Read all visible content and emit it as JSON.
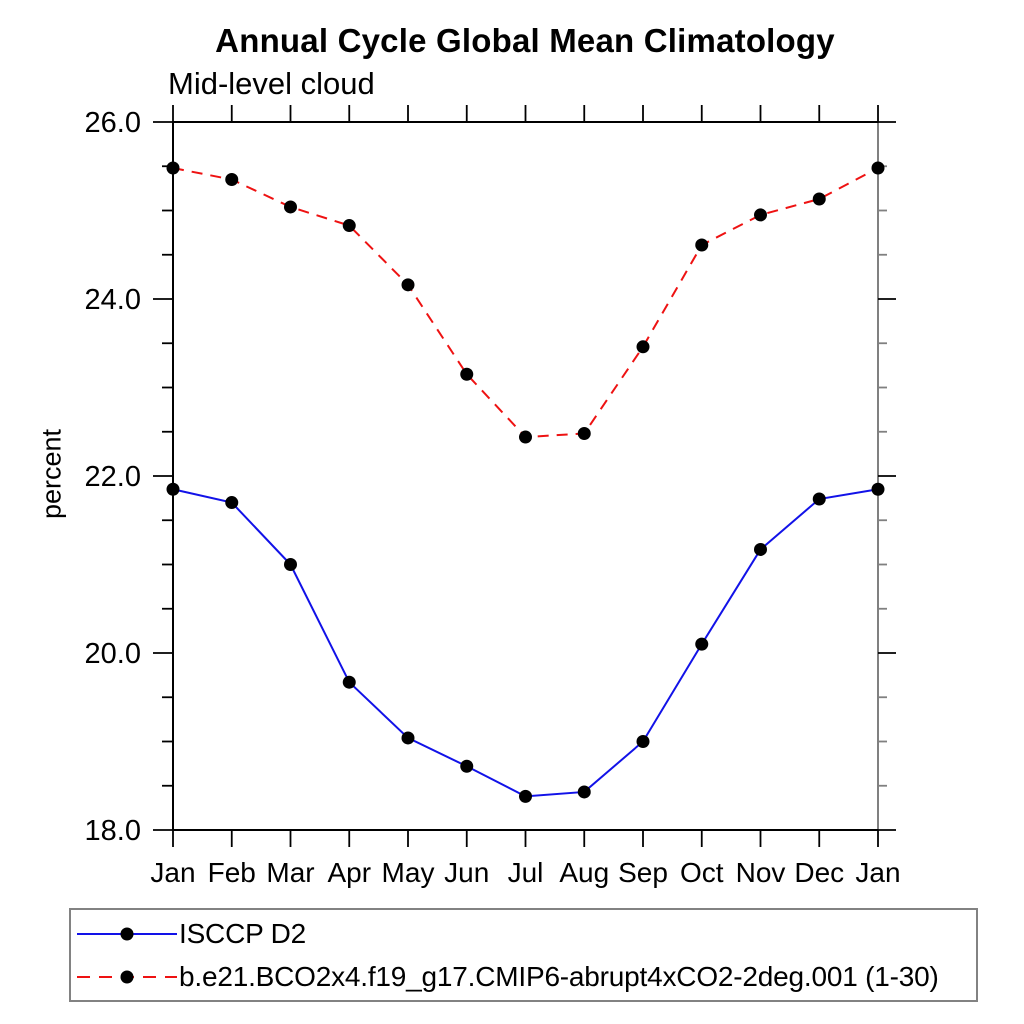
{
  "chart_data": {
    "type": "line",
    "title": "Annual Cycle Global Mean Climatology",
    "subtitle": "Mid-level cloud",
    "ylabel": "percent",
    "xlabel": "",
    "categories": [
      "Jan",
      "Feb",
      "Mar",
      "Apr",
      "May",
      "Jun",
      "Jul",
      "Aug",
      "Sep",
      "Oct",
      "Nov",
      "Dec",
      "Jan"
    ],
    "ylim": [
      18.0,
      26.0
    ],
    "ytick_major": [
      18.0,
      20.0,
      22.0,
      24.0,
      26.0
    ],
    "ytick_labels": [
      "18.0",
      "20.0",
      "22.0",
      "24.0",
      "26.0"
    ],
    "ytick_minor_step": 0.5,
    "grid": false,
    "legend_position": "bottom-left-boxed",
    "series": [
      {
        "name": "ISCCP D2",
        "color": "#1212e8",
        "line_style": "solid",
        "marker": "filled-circle",
        "marker_color": "#000000",
        "values": [
          21.85,
          21.7,
          21.0,
          19.67,
          19.04,
          18.72,
          18.38,
          18.43,
          19.0,
          20.1,
          21.17,
          21.74,
          21.85
        ]
      },
      {
        "name": "b.e21.BCO2x4.f19_g17.CMIP6-abrupt4xCO2-2deg.001 (1-30)",
        "color": "#ee1212",
        "line_style": "dashed",
        "marker": "filled-circle",
        "marker_color": "#000000",
        "values": [
          25.48,
          25.35,
          25.04,
          24.83,
          24.16,
          23.15,
          22.44,
          22.48,
          23.46,
          24.61,
          24.95,
          25.13,
          25.48
        ]
      }
    ]
  },
  "colors": {
    "axis": "#000000",
    "right_axis": "#808080",
    "legend_border": "#828282",
    "background": "#ffffff"
  }
}
